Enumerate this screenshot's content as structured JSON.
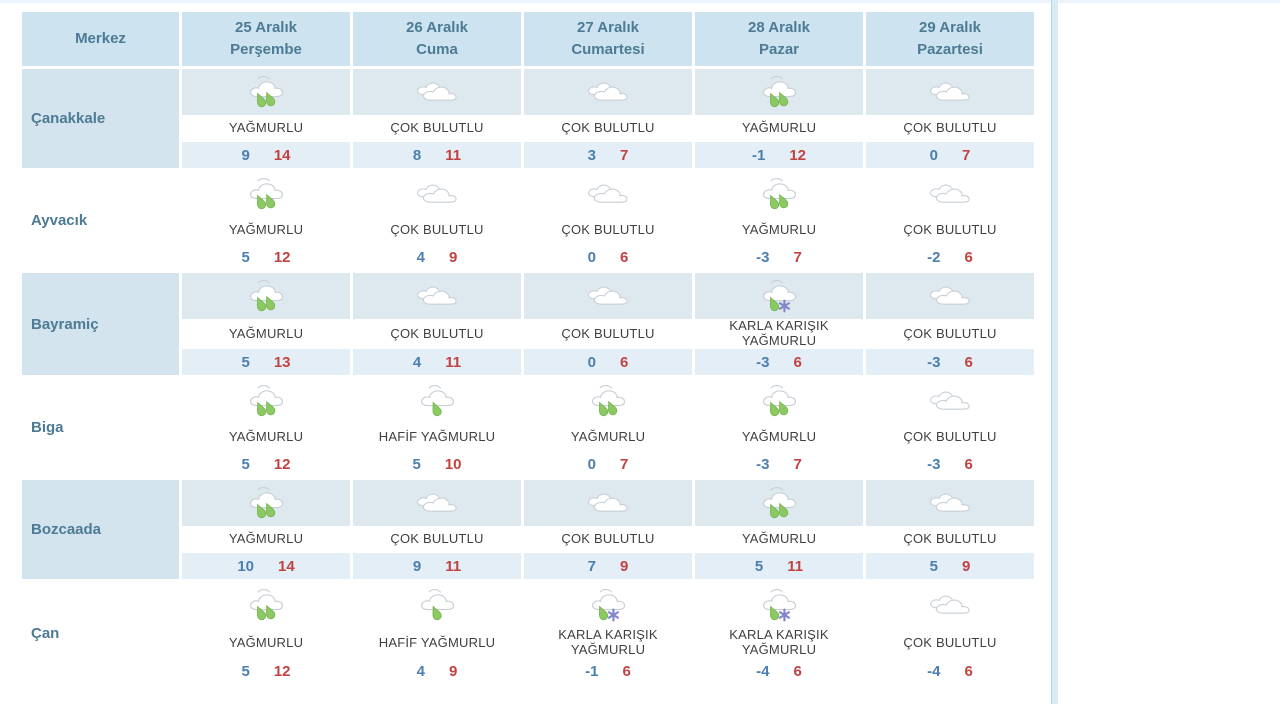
{
  "table": {
    "corner_label": "Merkez",
    "days": [
      {
        "date": "25 Aralık",
        "weekday": "Perşembe"
      },
      {
        "date": "26 Aralık",
        "weekday": "Cuma"
      },
      {
        "date": "27 Aralık",
        "weekday": "Cumartesi"
      },
      {
        "date": "28 Aralık",
        "weekday": "Pazar"
      },
      {
        "date": "29 Aralık",
        "weekday": "Pazartesi"
      }
    ],
    "rows": [
      {
        "city": "Çanakkale",
        "cells": [
          {
            "icon": "rain",
            "condition": "YAĞMURLU",
            "min": "9",
            "max": "14"
          },
          {
            "icon": "cloudy",
            "condition": "ÇOK BULUTLU",
            "min": "8",
            "max": "11"
          },
          {
            "icon": "cloudy",
            "condition": "ÇOK BULUTLU",
            "min": "3",
            "max": "7"
          },
          {
            "icon": "rain",
            "condition": "YAĞMURLU",
            "min": "-1",
            "max": "12"
          },
          {
            "icon": "cloudy",
            "condition": "ÇOK BULUTLU",
            "min": "0",
            "max": "7"
          }
        ]
      },
      {
        "city": "Ayvacık",
        "cells": [
          {
            "icon": "rain",
            "condition": "YAĞMURLU",
            "min": "5",
            "max": "12"
          },
          {
            "icon": "cloudy",
            "condition": "ÇOK BULUTLU",
            "min": "4",
            "max": "9"
          },
          {
            "icon": "cloudy",
            "condition": "ÇOK BULUTLU",
            "min": "0",
            "max": "6"
          },
          {
            "icon": "rain",
            "condition": "YAĞMURLU",
            "min": "-3",
            "max": "7"
          },
          {
            "icon": "cloudy",
            "condition": "ÇOK BULUTLU",
            "min": "-2",
            "max": "6"
          }
        ]
      },
      {
        "city": "Bayramiç",
        "cells": [
          {
            "icon": "rain",
            "condition": "YAĞMURLU",
            "min": "5",
            "max": "13"
          },
          {
            "icon": "cloudy",
            "condition": "ÇOK BULUTLU",
            "min": "4",
            "max": "11"
          },
          {
            "icon": "cloudy",
            "condition": "ÇOK BULUTLU",
            "min": "0",
            "max": "6"
          },
          {
            "icon": "sleet",
            "condition": "KARLA KARIŞIK YAĞMURLU",
            "min": "-3",
            "max": "6"
          },
          {
            "icon": "cloudy",
            "condition": "ÇOK BULUTLU",
            "min": "-3",
            "max": "6"
          }
        ]
      },
      {
        "city": "Biga",
        "cells": [
          {
            "icon": "rain",
            "condition": "YAĞMURLU",
            "min": "5",
            "max": "12"
          },
          {
            "icon": "light-rain",
            "condition": "HAFİF YAĞMURLU",
            "min": "5",
            "max": "10"
          },
          {
            "icon": "rain",
            "condition": "YAĞMURLU",
            "min": "0",
            "max": "7"
          },
          {
            "icon": "rain",
            "condition": "YAĞMURLU",
            "min": "-3",
            "max": "7"
          },
          {
            "icon": "cloudy",
            "condition": "ÇOK BULUTLU",
            "min": "-3",
            "max": "6"
          }
        ]
      },
      {
        "city": "Bozcaada",
        "cells": [
          {
            "icon": "rain",
            "condition": "YAĞMURLU",
            "min": "10",
            "max": "14"
          },
          {
            "icon": "cloudy",
            "condition": "ÇOK BULUTLU",
            "min": "9",
            "max": "11"
          },
          {
            "icon": "cloudy",
            "condition": "ÇOK BULUTLU",
            "min": "7",
            "max": "9"
          },
          {
            "icon": "rain",
            "condition": "YAĞMURLU",
            "min": "5",
            "max": "11"
          },
          {
            "icon": "cloudy",
            "condition": "ÇOK BULUTLU",
            "min": "5",
            "max": "9"
          }
        ]
      },
      {
        "city": "Çan",
        "cells": [
          {
            "icon": "rain",
            "condition": "YAĞMURLU",
            "min": "5",
            "max": "12"
          },
          {
            "icon": "light-rain",
            "condition": "HAFİF YAĞMURLU",
            "min": "4",
            "max": "9"
          },
          {
            "icon": "sleet",
            "condition": "KARLA KARIŞIK YAĞMURLU",
            "min": "-1",
            "max": "6"
          },
          {
            "icon": "sleet",
            "condition": "KARLA KARIŞIK YAĞMURLU",
            "min": "-4",
            "max": "6"
          },
          {
            "icon": "cloudy",
            "condition": "ÇOK BULUTLU",
            "min": "-4",
            "max": "6"
          }
        ]
      }
    ]
  },
  "colors": {
    "header_bg": "#cde4f0",
    "header_text": "#4d7a95",
    "row_alt_name_bg": "#d3e4ee",
    "row_alt_icon_bg": "#dee9ef",
    "row_alt_temp_bg": "#e3eef7",
    "min_temp": "#4a7fb0",
    "max_temp": "#c24240",
    "rain_drop": "#8cc963",
    "snowflake": "#8287cb",
    "cloud_outline": "#c9cfd6"
  }
}
